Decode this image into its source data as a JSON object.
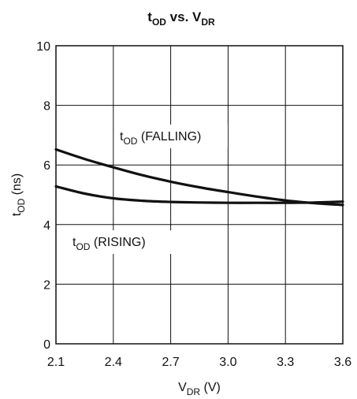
{
  "chart_data": {
    "type": "line",
    "title": {
      "main": "t",
      "main_sub": "OD",
      "mid": " vs. V",
      "mid_sub": "DR"
    },
    "xlabel": {
      "main": "V",
      "sub": "DR",
      "rest": " (V)"
    },
    "ylabel": {
      "main": "t",
      "sub": "OD",
      "rest": " (ns)"
    },
    "xlim": [
      2.1,
      3.6
    ],
    "ylim": [
      0,
      10
    ],
    "x_ticks": [
      "2.1",
      "2.4",
      "2.7",
      "3.0",
      "3.3",
      "3.6"
    ],
    "y_ticks": [
      "0",
      "2",
      "4",
      "6",
      "8",
      "10"
    ],
    "grid": true,
    "series": [
      {
        "name": "FALLING",
        "x": [
          2.1,
          2.25,
          2.4,
          2.55,
          2.7,
          2.85,
          3.0,
          3.15,
          3.3,
          3.45,
          3.6
        ],
        "values": [
          6.52,
          6.2,
          5.92,
          5.66,
          5.44,
          5.25,
          5.09,
          4.94,
          4.81,
          4.72,
          4.66
        ]
      },
      {
        "name": "RISING",
        "x": [
          2.1,
          2.25,
          2.4,
          2.55,
          2.7,
          2.85,
          3.0,
          3.15,
          3.3,
          3.45,
          3.6
        ],
        "values": [
          5.28,
          5.04,
          4.88,
          4.8,
          4.76,
          4.74,
          4.73,
          4.73,
          4.73,
          4.74,
          4.77
        ]
      }
    ],
    "annotations": [
      {
        "main": "t",
        "sub": "OD",
        "rest": " (FALLING)"
      },
      {
        "main": "t",
        "sub": "OD",
        "rest": " (RISING)"
      }
    ]
  }
}
